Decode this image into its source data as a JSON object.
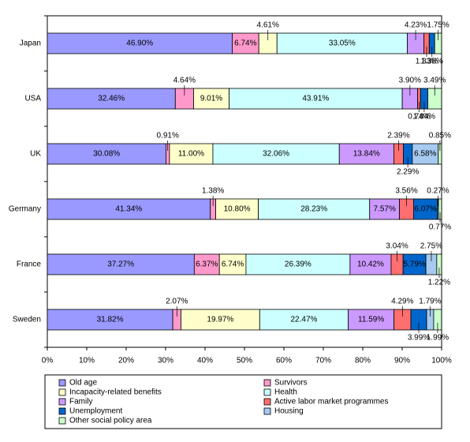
{
  "chart_data": {
    "type": "bar",
    "orientation": "horizontal",
    "stacked": true,
    "categories": [
      "Japan",
      "USA",
      "UK",
      "Germany",
      "France",
      "Sweden"
    ],
    "xlim": [
      0,
      100
    ],
    "xticks": [
      {
        "value": 0,
        "label": "0%"
      },
      {
        "value": 10,
        "label": "10%"
      },
      {
        "value": 20,
        "label": "20%"
      },
      {
        "value": 30,
        "label": "30%"
      },
      {
        "value": 40,
        "label": "40%"
      },
      {
        "value": 50,
        "label": "50%"
      },
      {
        "value": 60,
        "label": "60%"
      },
      {
        "value": 70,
        "label": "70%"
      },
      {
        "value": 80,
        "label": "80%"
      },
      {
        "value": 90,
        "label": "90%"
      },
      {
        "value": 100,
        "label": "100%"
      }
    ],
    "legend": "bottom",
    "series": [
      {
        "name": "Old age",
        "color": "#9999ff",
        "values": [
          46.9,
          32.46,
          30.08,
          41.34,
          37.27,
          31.82
        ],
        "value_labels": [
          "46.90%",
          "32.46%",
          "30.08%",
          "41.34%",
          "37.27%",
          "31.82%"
        ]
      },
      {
        "name": "Survivors",
        "color": "#ff99cc",
        "values": [
          6.74,
          4.64,
          0.91,
          1.38,
          6.37,
          2.07
        ],
        "value_labels": [
          "6.74%",
          "4.64%",
          "0.91%",
          "1.38%",
          "6.37%",
          "2.07%"
        ]
      },
      {
        "name": "Incapacity-related benefits",
        "color": "#ffffcc",
        "values": [
          4.61,
          9.01,
          11.0,
          10.8,
          6.74,
          19.97
        ],
        "value_labels": [
          "4.61%",
          "9.01%",
          "11.00%",
          "10.80%",
          "6.74%",
          "19.97%"
        ]
      },
      {
        "name": "Health",
        "color": "#ccffff",
        "values": [
          33.05,
          43.91,
          32.06,
          28.23,
          26.39,
          22.47
        ],
        "value_labels": [
          "33.05%",
          "43.91%",
          "32.06%",
          "28.23%",
          "26.39%",
          "22.47%"
        ]
      },
      {
        "name": "Family",
        "color": "#cc99ff",
        "values": [
          4.23,
          3.9,
          13.84,
          7.57,
          10.42,
          11.59
        ],
        "value_labels": [
          "4.23%",
          "3.90%",
          "13.84%",
          "7.57%",
          "10.42%",
          "11.59%"
        ]
      },
      {
        "name": "Active labor market programmes",
        "color": "#ff6f6f",
        "values": [
          1.33,
          0.74,
          2.39,
          3.56,
          3.04,
          4.29
        ],
        "value_labels": [
          "1.33%",
          "0.74%",
          "2.39%",
          "3.56%",
          "3.04%",
          "4.29%"
        ]
      },
      {
        "name": "Unemployment",
        "color": "#0066cc",
        "values": [
          1.38,
          1.84,
          2.29,
          6.07,
          5.79,
          3.99
        ],
        "value_labels": [
          "1.38%",
          "1.84%",
          "2.29%",
          "6.07%",
          "5.79%",
          "3.99%"
        ]
      },
      {
        "name": "Housing",
        "color": "#a6caf0",
        "values": [
          null,
          null,
          6.58,
          0.27,
          2.75,
          1.79
        ],
        "value_labels": [
          null,
          null,
          "6.58%",
          "0.27%",
          "2.75%",
          "1.79%"
        ]
      },
      {
        "name": "Other social policy area",
        "color": "#ccffcc",
        "values": [
          1.75,
          3.49,
          0.85,
          0.77,
          1.22,
          1.99
        ],
        "value_labels": [
          "1.75%",
          "3.49%",
          "0.85%",
          "0.77%",
          "1.22%",
          "1.99%"
        ]
      }
    ]
  }
}
